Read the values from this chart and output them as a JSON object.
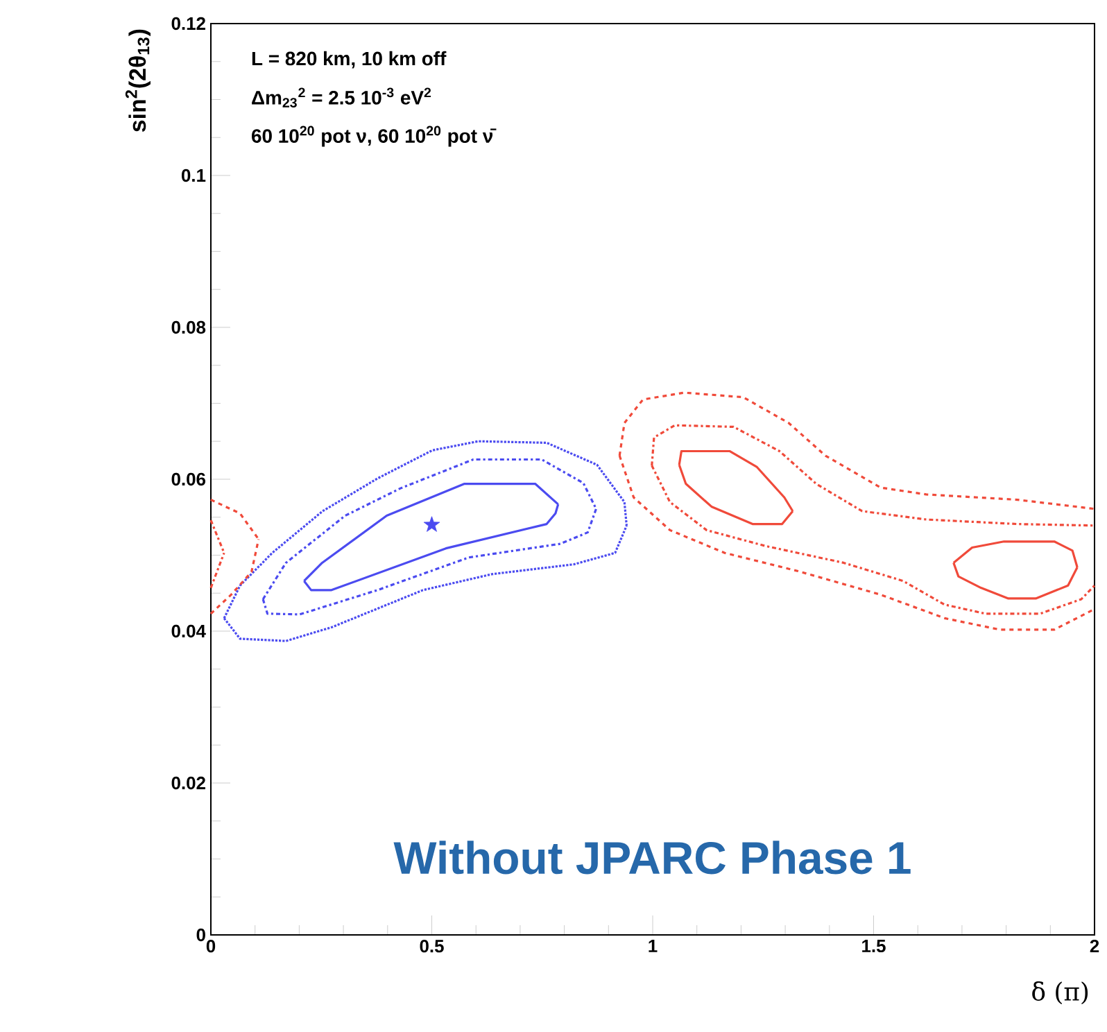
{
  "chart_data": {
    "type": "line",
    "xlabel": "δ (π)",
    "ylabel": "sin$^{2}$(2θ$_{13}$)",
    "xlim": [
      0,
      2
    ],
    "ylim": [
      0,
      0.12
    ],
    "xticks": [
      0,
      0.5,
      1,
      1.5,
      2
    ],
    "yticks": [
      0,
      0.02,
      0.04,
      0.06,
      0.08,
      0.1,
      0.12
    ],
    "annotations": [
      "L = 820 km, 10 km off",
      "Δm$_{23}$$^{2}$ = 2.5 10$^{-3}$ eV$^{2}$",
      "60 10$^{20}$ pot ν, 60 10$^{20}$ pot ν̄",
      "Without JPARC Phase 1"
    ],
    "series": [
      {
        "color": "#4b4bf0",
        "line_style": "solid",
        "x": [
          0.211,
          0.252,
          0.398,
          0.574,
          0.734,
          0.786
        ],
        "values": [
          0.0466,
          0.049,
          0.0552,
          0.0594,
          0.0594,
          0.0567
        ]
      },
      {
        "color": "#4b4bf0",
        "line_style": "solid",
        "x": [
          0.211,
          0.227,
          0.273,
          0.532,
          0.76,
          0.78,
          0.786
        ],
        "values": [
          0.0466,
          0.0454,
          0.0454,
          0.0509,
          0.0541,
          0.0555,
          0.0567
        ]
      },
      {
        "color": "#4b4bf0",
        "line_style": "dashdot",
        "x": [
          0.118,
          0.17,
          0.304,
          0.429,
          0.594,
          0.749,
          0.843,
          0.872
        ],
        "values": [
          0.0442,
          0.049,
          0.0552,
          0.0588,
          0.0626,
          0.0626,
          0.0595,
          0.0561
        ]
      },
      {
        "color": "#4b4bf0",
        "line_style": "dashdot",
        "x": [
          0.118,
          0.128,
          0.201,
          0.377,
          0.584,
          0.791,
          0.853,
          0.872
        ],
        "values": [
          0.0442,
          0.0423,
          0.0422,
          0.0454,
          0.0497,
          0.0515,
          0.053,
          0.0561
        ]
      },
      {
        "color": "#4b4bf0",
        "line_style": "dotted",
        "x": [
          0.03,
          0.066,
          0.139,
          0.253,
          0.377,
          0.501,
          0.605,
          0.76,
          0.874,
          0.936,
          0.941
        ],
        "values": [
          0.0417,
          0.046,
          0.0503,
          0.0558,
          0.0601,
          0.0638,
          0.065,
          0.0648,
          0.0619,
          0.057,
          0.0539
        ]
      },
      {
        "color": "#4b4bf0",
        "line_style": "dotted",
        "x": [
          0.03,
          0.066,
          0.17,
          0.273,
          0.48,
          0.636,
          0.822,
          0.915,
          0.941
        ],
        "values": [
          0.0417,
          0.039,
          0.0387,
          0.0405,
          0.0454,
          0.0475,
          0.0488,
          0.0503,
          0.0539
        ]
      },
      {
        "color": "#f04a3a",
        "line_style": "dashed",
        "x": [
          0,
          0.066,
          0.108
        ],
        "values": [
          0.0573,
          0.0555,
          0.0521
        ]
      },
      {
        "color": "#f04a3a",
        "line_style": "dashed",
        "x": [
          0,
          0.046,
          0.092,
          0.108
        ],
        "values": [
          0.0423,
          0.0448,
          0.0478,
          0.0521
        ]
      },
      {
        "color": "#f04a3a",
        "line_style": "dashdot",
        "x": [
          0,
          0.03
        ],
        "values": [
          0.0546,
          0.0503
        ]
      },
      {
        "color": "#f04a3a",
        "line_style": "dashdot",
        "x": [
          0,
          0.03
        ],
        "values": [
          0.0457,
          0.0503
        ]
      },
      {
        "color": "#f04a3a",
        "line_style": "solid",
        "x": [
          1.06,
          1.065,
          1.174,
          1.236,
          1.298,
          1.317
        ],
        "values": [
          0.0619,
          0.0637,
          0.0637,
          0.0616,
          0.0576,
          0.0558
        ]
      },
      {
        "color": "#f04a3a",
        "line_style": "solid",
        "x": [
          1.06,
          1.075,
          1.133,
          1.226,
          1.293,
          1.317
        ],
        "values": [
          0.0619,
          0.0594,
          0.0564,
          0.0541,
          0.0541,
          0.0558
        ]
      },
      {
        "color": "#f04a3a",
        "line_style": "solid",
        "x": [
          1.681,
          1.723,
          1.795,
          1.909,
          1.95,
          1.961
        ],
        "values": [
          0.049,
          0.051,
          0.0518,
          0.0518,
          0.0506,
          0.0484
        ]
      },
      {
        "color": "#f04a3a",
        "line_style": "solid",
        "x": [
          1.681,
          1.692,
          1.743,
          1.805,
          1.867,
          1.94,
          1.961
        ],
        "values": [
          0.049,
          0.0472,
          0.0457,
          0.0443,
          0.0443,
          0.046,
          0.0484
        ]
      },
      {
        "color": "#f04a3a",
        "line_style": "dashdot",
        "x": [
          0.998,
          1.003,
          1.05,
          1.183,
          1.287,
          1.37,
          1.474,
          1.619,
          1.826,
          2.0
        ],
        "values": [
          0.0618,
          0.0655,
          0.0671,
          0.0669,
          0.0637,
          0.0594,
          0.0558,
          0.0547,
          0.0541,
          0.0539
        ]
      },
      {
        "color": "#f04a3a",
        "line_style": "dashdot",
        "x": [
          0.998,
          1.039,
          1.122,
          1.256,
          1.432,
          1.567,
          1.66,
          1.753,
          1.877,
          1.97,
          2.0
        ],
        "values": [
          0.0618,
          0.057,
          0.0533,
          0.0512,
          0.049,
          0.0466,
          0.0435,
          0.0423,
          0.0423,
          0.0442,
          0.046
        ]
      },
      {
        "color": "#f04a3a",
        "line_style": "dashed",
        "x": [
          0.925,
          0.936,
          0.978,
          1.071,
          1.205,
          1.308,
          1.391,
          1.516,
          1.619,
          1.826,
          2.0
        ],
        "values": [
          0.0631,
          0.0674,
          0.0705,
          0.0714,
          0.0708,
          0.0674,
          0.0631,
          0.0589,
          0.058,
          0.0573,
          0.0561
        ]
      },
      {
        "color": "#f04a3a",
        "line_style": "dashed",
        "x": [
          0.925,
          0.957,
          1.039,
          1.163,
          1.329,
          1.516,
          1.661,
          1.785,
          1.909,
          2.0
        ],
        "values": [
          0.0631,
          0.0576,
          0.0533,
          0.0503,
          0.0479,
          0.0448,
          0.0417,
          0.0402,
          0.0402,
          0.0429
        ]
      },
      {
        "type": "scatter",
        "marker": "star",
        "color": "#4b4bf0",
        "x": [
          0.5
        ],
        "values": [
          0.054
        ]
      }
    ]
  }
}
